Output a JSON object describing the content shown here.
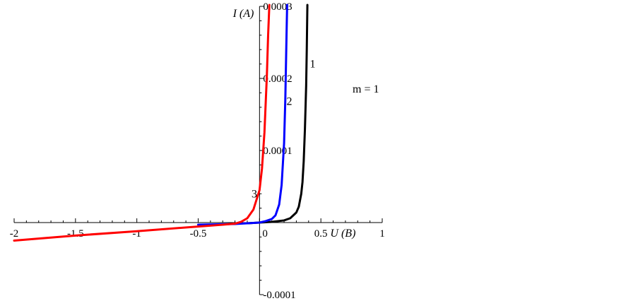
{
  "chart_data": {
    "type": "line",
    "xlabel": "U (B)",
    "ylabel": "I (A)",
    "xlim": [
      -2,
      1
    ],
    "ylim": [
      -0.0001,
      0.0003
    ],
    "x_ticks": [
      {
        "value": -2,
        "label": "-2"
      },
      {
        "value": -1.5,
        "label": "-1.5"
      },
      {
        "value": -1,
        "label": "-1"
      },
      {
        "value": -0.5,
        "label": "-0.5"
      },
      {
        "value": 0,
        "label": "0"
      },
      {
        "value": 0.5,
        "label": "0.5"
      },
      {
        "value": 1,
        "label": "1"
      }
    ],
    "y_ticks": [
      {
        "value": -0.0001,
        "label": "-0.0001"
      },
      {
        "value": 0.0001,
        "label": "0.0001"
      },
      {
        "value": 0.0002,
        "label": "0.0002"
      },
      {
        "value": 0.0003,
        "label": "0.0003"
      }
    ],
    "grid": false,
    "annotation": "m = 1",
    "series": [
      {
        "name": "1",
        "color": "#000000",
        "x": [
          -0.1,
          0.0,
          0.1,
          0.2,
          0.25,
          0.3,
          0.32,
          0.34,
          0.35,
          0.36,
          0.37,
          0.38,
          0.385,
          0.39
        ],
        "y": [
          -1e-06,
          0.0,
          1e-06,
          3e-06,
          6e-06,
          1.4e-05,
          2.2e-05,
          4e-05,
          5.6e-05,
          8.5e-05,
          0.00013,
          0.00019,
          0.00024,
          0.000302
        ]
      },
      {
        "name": "2",
        "color": "#0000ff",
        "x": [
          -0.5,
          -0.2,
          -0.1,
          0.0,
          0.05,
          0.1,
          0.13,
          0.16,
          0.18,
          0.2,
          0.21,
          0.22,
          0.225
        ],
        "y": [
          -3e-06,
          -2e-06,
          -1e-06,
          0.0,
          2e-06,
          5e-06,
          1e-05,
          2.5e-05,
          5.2e-05,
          0.00011,
          0.00017,
          0.00026,
          0.000302
        ]
      },
      {
        "name": "3",
        "color": "#ff0000",
        "x": [
          -2,
          -1.5,
          -1,
          -0.5,
          -0.3,
          -0.2,
          -0.15,
          -0.1,
          -0.05,
          0.0,
          0.02,
          0.04,
          0.06,
          0.07,
          0.08
        ],
        "y": [
          -2.5e-05,
          -1.8e-05,
          -1.2e-05,
          -5.5e-06,
          -3e-06,
          -1.5e-06,
          1e-06,
          6e-06,
          1.8e-05,
          4.5e-05,
          7.5e-05,
          0.000125,
          0.000205,
          0.00026,
          0.000302
        ]
      }
    ],
    "curve_labels": [
      {
        "text": "1",
        "x": 0.41,
        "y": 0.000215
      },
      {
        "text": "2",
        "x": 0.22,
        "y": 0.000163
      },
      {
        "text": "3",
        "x": -0.065,
        "y": 3.5e-05
      }
    ]
  }
}
